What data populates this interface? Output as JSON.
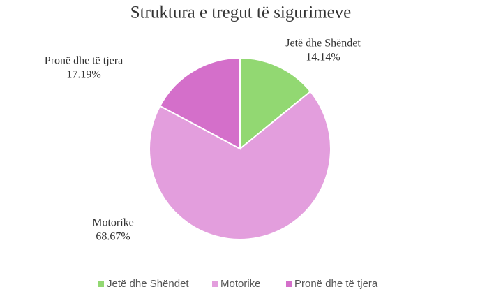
{
  "chart_data": {
    "type": "pie",
    "title": "Struktura  e tregut të sigurimeve",
    "categories": [
      "Jetë dhe Shëndet",
      "Motorike",
      "Pronë dhe të tjera"
    ],
    "values": [
      14.14,
      68.67,
      17.19
    ],
    "value_labels": [
      "14.14%",
      "68.67%",
      "17.19%"
    ],
    "colors": [
      "#92d872",
      "#e39edd",
      "#d46fca"
    ],
    "legend": "bottom"
  }
}
